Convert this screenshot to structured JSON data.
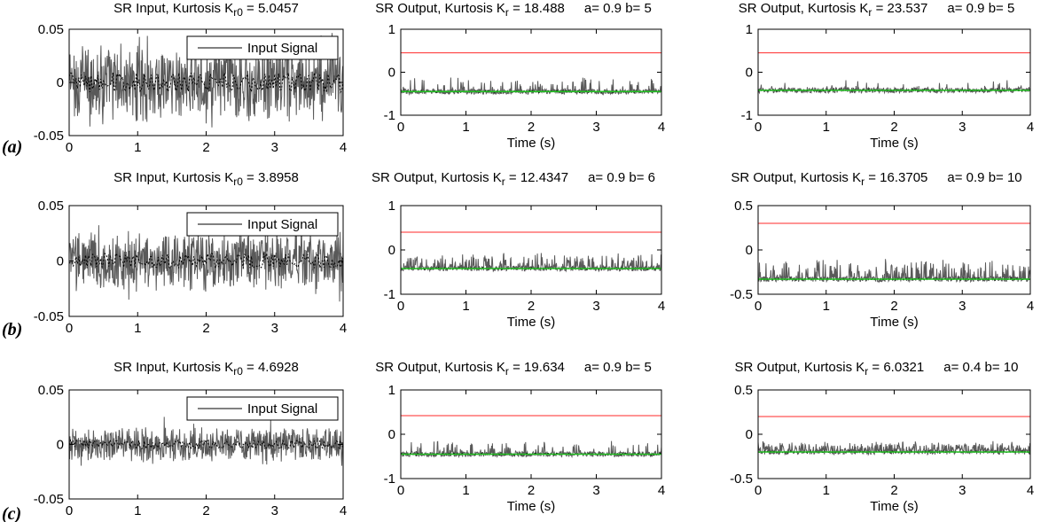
{
  "chart_data": [
    {
      "type": "line",
      "row_label": "(a)",
      "title": "SR Input, Kurtosis K",
      "title_sub": "r0",
      "title_value": " = 5.0457",
      "title_params": "",
      "xlim": [
        0,
        4
      ],
      "ylim": [
        -0.05,
        0.05
      ],
      "xticks": [
        0,
        1,
        2,
        3,
        4
      ],
      "yticks": [
        -0.05,
        0,
        0.05
      ],
      "yticklabels": [
        "-0.05",
        "0",
        "0.05"
      ],
      "xlabel": "",
      "legend": "Input Signal",
      "kind": "input",
      "amp": 0.038,
      "spike": 0.012,
      "density": 0.55,
      "threshold": null
    },
    {
      "type": "line",
      "row_label": "",
      "title": "SR Output, Kurtosis K",
      "title_sub": "r",
      "title_value": " = 18.488",
      "title_params": "a= 0.9   b= 5",
      "xlim": [
        0,
        4
      ],
      "ylim": [
        -1,
        1
      ],
      "xticks": [
        0,
        1,
        2,
        3,
        4
      ],
      "yticks": [
        -1,
        0,
        1
      ],
      "yticklabels": [
        "-1",
        "0",
        "1"
      ],
      "xlabel": "Time (s)",
      "legend": "",
      "kind": "output",
      "baseline": -0.45,
      "threshold": 0.45,
      "spike_max": 0.3,
      "density": 0.12
    },
    {
      "type": "line",
      "row_label": "",
      "title": "SR Output, Kurtosis K",
      "title_sub": "r",
      "title_value": " = 23.537",
      "title_params": "a= 0.9   b= 5",
      "xlim": [
        0,
        4
      ],
      "ylim": [
        -1,
        1
      ],
      "xticks": [
        0,
        1,
        2,
        3,
        4
      ],
      "yticks": [
        -1,
        0,
        1
      ],
      "yticklabels": [
        "-1",
        "0",
        "1"
      ],
      "xlabel": "Time (s)",
      "legend": "",
      "kind": "output",
      "baseline": -0.42,
      "threshold": 0.45,
      "spike_max": 0.2,
      "density": 0.06
    },
    {
      "type": "line",
      "row_label": "(b)",
      "title": "SR Input, Kurtosis K",
      "title_sub": "r0",
      "title_value": " = 3.8958",
      "title_params": "",
      "xlim": [
        0,
        4
      ],
      "ylim": [
        -0.05,
        0.05
      ],
      "xticks": [
        0,
        1,
        2,
        3,
        4
      ],
      "yticks": [
        -0.05,
        0,
        0.05
      ],
      "yticklabels": [
        "-0.05",
        "0",
        "0.05"
      ],
      "xlabel": "",
      "legend": "Input Signal",
      "kind": "input",
      "amp": 0.028,
      "spike": 0.012,
      "density": 0.7,
      "threshold": null
    },
    {
      "type": "line",
      "row_label": "",
      "title": "SR Output, Kurtosis K",
      "title_sub": "r",
      "title_value": " = 12.4347",
      "title_params": "a= 0.9   b= 6",
      "xlim": [
        0,
        4
      ],
      "ylim": [
        -1,
        1
      ],
      "xticks": [
        0,
        1,
        2,
        3,
        4
      ],
      "yticks": [
        -1,
        0,
        1
      ],
      "yticklabels": [
        "-1",
        "0",
        "1"
      ],
      "xlabel": "Time (s)",
      "legend": "",
      "kind": "output",
      "baseline": -0.42,
      "threshold": 0.4,
      "spike_max": 0.3,
      "density": 0.3
    },
    {
      "type": "line",
      "row_label": "",
      "title": "SR Output, Kurtosis K",
      "title_sub": "r",
      "title_value": " = 16.3705",
      "title_params": "a= 0.9  b= 10",
      "xlim": [
        0,
        4
      ],
      "ylim": [
        -0.5,
        0.5
      ],
      "xticks": [
        0,
        1,
        2,
        3,
        4
      ],
      "yticks": [
        -0.5,
        0,
        0.5
      ],
      "yticklabels": [
        "-0.5",
        "0",
        "0.5"
      ],
      "xlabel": "Time (s)",
      "legend": "",
      "kind": "output",
      "baseline": -0.33,
      "threshold": 0.3,
      "spike_max": 0.2,
      "density": 0.3
    },
    {
      "type": "line",
      "row_label": "(c)",
      "title": "SR Input, Kurtosis K",
      "title_sub": "r0",
      "title_value": " = 4.6928",
      "title_params": "",
      "xlim": [
        0,
        4
      ],
      "ylim": [
        -0.05,
        0.05
      ],
      "xticks": [
        0,
        1,
        2,
        3,
        4
      ],
      "yticks": [
        -0.05,
        0,
        0.05
      ],
      "yticklabels": [
        "-0.05",
        "0",
        "0.05"
      ],
      "xlabel": "",
      "legend": "Input Signal",
      "kind": "input",
      "amp": 0.016,
      "spike": 0.01,
      "density": 0.7,
      "threshold": null
    },
    {
      "type": "line",
      "row_label": "",
      "title": "SR Output, Kurtosis K",
      "title_sub": "r",
      "title_value": " = 19.634",
      "title_params": "a= 0.9   b= 5",
      "xlim": [
        0,
        4
      ],
      "ylim": [
        -1,
        1
      ],
      "xticks": [
        0,
        1,
        2,
        3,
        4
      ],
      "yticks": [
        -1,
        0,
        1
      ],
      "yticklabels": [
        "-1",
        "0",
        "1"
      ],
      "xlabel": "Time (s)",
      "legend": "",
      "kind": "output",
      "baseline": -0.45,
      "threshold": 0.42,
      "spike_max": 0.25,
      "density": 0.15
    },
    {
      "type": "line",
      "row_label": "",
      "title": "SR Output, Kurtosis K",
      "title_sub": "r",
      "title_value": " = 6.0321",
      "title_params": "a= 0.4   b= 10",
      "xlim": [
        0,
        4
      ],
      "ylim": [
        -0.5,
        0.5
      ],
      "xticks": [
        0,
        1,
        2,
        3,
        4
      ],
      "yticks": [
        -0.5,
        0,
        0.5
      ],
      "yticklabels": [
        "-0.5",
        "0",
        "0.5"
      ],
      "xlabel": "Time (s)",
      "legend": "",
      "kind": "output",
      "baseline": -0.2,
      "threshold": 0.2,
      "spike_max": 0.1,
      "density": 0.5
    }
  ],
  "colors": {
    "signal": "#595959",
    "trace": "#000000",
    "threshold": "#ff2a2a",
    "smooth": "#22c022",
    "axis": "#000000"
  }
}
